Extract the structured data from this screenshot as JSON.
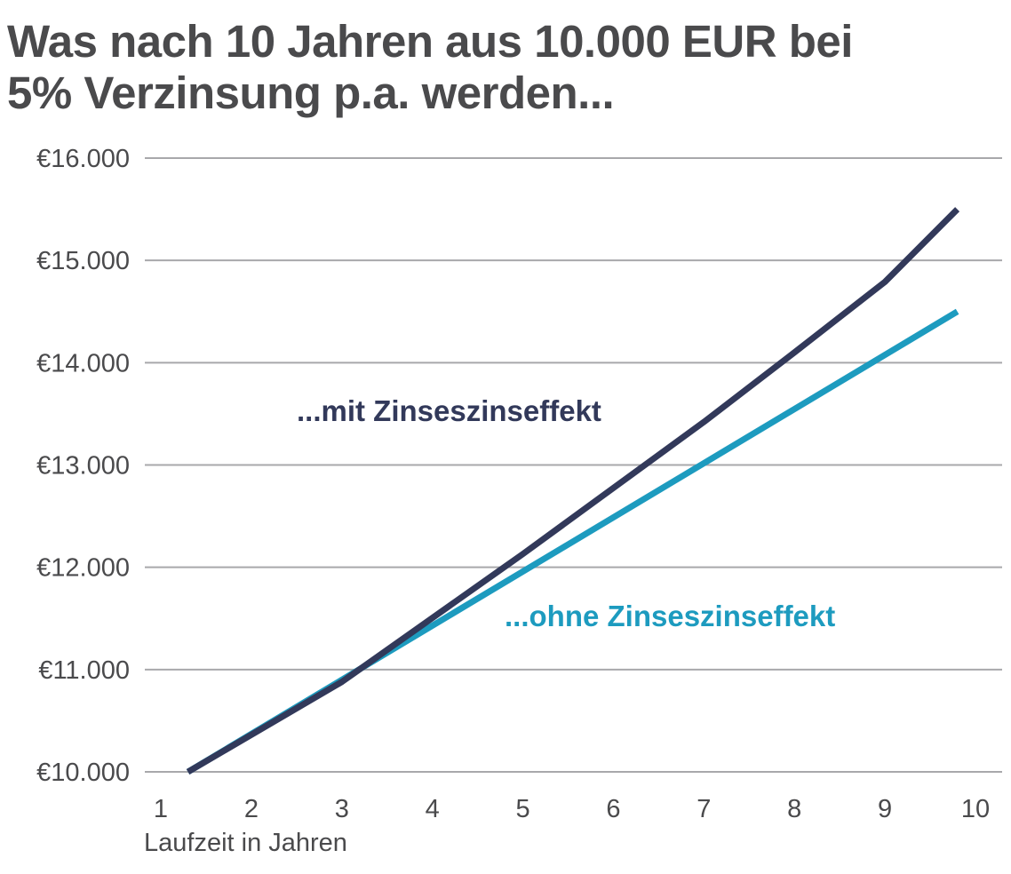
{
  "chart_data": {
    "type": "line",
    "title_lines": [
      "Was nach 10 Jahren aus 10.000 EUR bei",
      "5% Verzinsung p.a. werden..."
    ],
    "xlabel": "Laufzeit in Jahren",
    "ylabel": "",
    "x": [
      1,
      2,
      3,
      4,
      5,
      6,
      7,
      8,
      9,
      10
    ],
    "xlim": [
      1,
      10
    ],
    "ylim": [
      10000,
      16000
    ],
    "y_ticks": [
      10000,
      11000,
      12000,
      13000,
      14000,
      15000,
      16000
    ],
    "y_tick_labels": [
      "€10.000",
      "€11.000",
      "€12.000",
      "€13.000",
      "€14.000",
      "€15.000",
      "€16.000"
    ],
    "x_tick_labels": [
      "1",
      "2",
      "3",
      "4",
      "5",
      "6",
      "7",
      "8",
      "9",
      "10"
    ],
    "grid": true,
    "series": [
      {
        "name": "...mit Zinseszinseffekt",
        "x": [
          1.3,
          3,
          5,
          7,
          8,
          9,
          9.8
        ],
        "values": [
          10000,
          10880,
          12130,
          13420,
          14100,
          14790,
          15500
        ],
        "color": "#32395a"
      },
      {
        "name": "...ohne Zinseszinseffekt",
        "x": [
          1.3,
          9.8
        ],
        "values": [
          10000,
          14500
        ],
        "color": "#1d9bbf"
      }
    ]
  }
}
